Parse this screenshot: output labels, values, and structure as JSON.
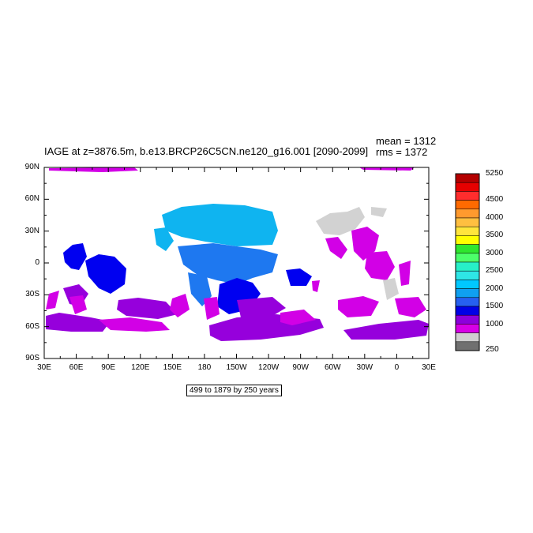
{
  "title": "IAGE at z=3876.5m, b.e13.BRCP26C5CN.ne120_g16.001 [2090-2099]",
  "stats": {
    "mean": "mean = 1312",
    "rms": "rms = 1372"
  },
  "range_note": "499 to 1879 by 250 years",
  "lat_ticks": [
    "90N",
    "60N",
    "30N",
    "0",
    "30S",
    "60S",
    "90S"
  ],
  "lon_ticks": [
    "30E",
    "60E",
    "90E",
    "120E",
    "150E",
    "180",
    "150W",
    "120W",
    "90W",
    "60W",
    "30W",
    "0",
    "30E"
  ],
  "colorbar": {
    "labels": [
      "5250",
      "4500",
      "4000",
      "3500",
      "3000",
      "2500",
      "2000",
      "1500",
      "1000",
      "250"
    ],
    "colors": [
      "#b40000",
      "#e60000",
      "#ff2d2d",
      "#ff6a00",
      "#ff9a2e",
      "#ffbf40",
      "#ffe53c",
      "#ffff00",
      "#2ee62e",
      "#4cff6a",
      "#27f0c8",
      "#2ee6e6",
      "#00c8ff",
      "#0fa0f0",
      "#2660f0",
      "#0000e6",
      "#8c00dc",
      "#d700e6",
      "#d0d0d0",
      "#707070"
    ]
  },
  "map_colors": {
    "light_blue": "#0fb4f0",
    "mid_blue": "#1e78f0",
    "blue": "#0000f0",
    "purple": "#9600dc",
    "magenta": "#d200e6",
    "gray": "#d2d2d2"
  }
}
